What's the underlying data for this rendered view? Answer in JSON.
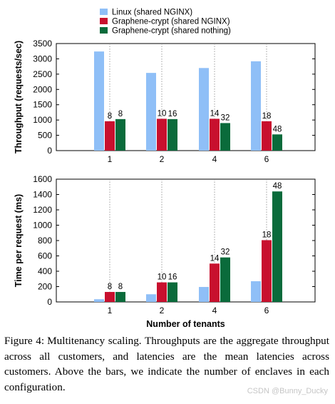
{
  "colors": {
    "linux": "#8fbff7",
    "crypt_nginx": "#c8102e",
    "crypt_nothing": "#0a6b3b",
    "grid": "#888888"
  },
  "legend": [
    {
      "label": "Linux (shared NGINX)",
      "color": "#8fbff7"
    },
    {
      "label": "Graphene-crypt (shared NGINX)",
      "color": "#c8102e"
    },
    {
      "label": "Graphene-crypt (shared nothing)",
      "color": "#0a6b3b"
    }
  ],
  "chart_data": [
    {
      "type": "bar",
      "ylabel": "Throughput (requests/sec)",
      "xlabel": "",
      "categories": [
        "1",
        "2",
        "4",
        "6"
      ],
      "ylim": [
        0,
        3500
      ],
      "yticks": [
        0,
        500,
        1000,
        1500,
        2000,
        2500,
        3000,
        3500
      ],
      "grid": "vertical dotted",
      "legend_position": "top",
      "series": [
        {
          "name": "Linux (shared NGINX)",
          "values": [
            3240,
            2540,
            2700,
            2920
          ],
          "labels": [
            "",
            "",
            "",
            ""
          ]
        },
        {
          "name": "Graphene-crypt (shared NGINX)",
          "values": [
            960,
            1040,
            1040,
            960
          ],
          "labels": [
            "8",
            "10",
            "14",
            "18"
          ]
        },
        {
          "name": "Graphene-crypt (shared nothing)",
          "values": [
            1030,
            1030,
            900,
            530
          ],
          "labels": [
            "8",
            "16",
            "32",
            "48"
          ]
        }
      ]
    },
    {
      "type": "bar",
      "ylabel": "Time per request (ms)",
      "xlabel": "Number of tenants",
      "categories": [
        "1",
        "2",
        "4",
        "6"
      ],
      "ylim": [
        0,
        1600
      ],
      "yticks": [
        0,
        200,
        400,
        600,
        800,
        1000,
        1200,
        1400,
        1600
      ],
      "grid": "vertical dotted",
      "series": [
        {
          "name": "Linux (shared NGINX)",
          "values": [
            35,
            100,
            195,
            270
          ],
          "labels": [
            "",
            "",
            "",
            ""
          ]
        },
        {
          "name": "Graphene-crypt (shared NGINX)",
          "values": [
            130,
            255,
            500,
            805
          ],
          "labels": [
            "8",
            "10",
            "14",
            "18"
          ]
        },
        {
          "name": "Graphene-crypt (shared nothing)",
          "values": [
            130,
            255,
            580,
            1440
          ],
          "labels": [
            "8",
            "16",
            "32",
            "48"
          ]
        }
      ]
    }
  ],
  "caption": {
    "label": "Figure 4:",
    "text": "Multitenancy scaling. Throughputs are the aggregate throughput across all customers, and latencies are the mean latencies across customers. Above the bars, we indicate the number of enclaves in each configuration."
  },
  "watermark": "CSDN @Bunny_Ducky"
}
